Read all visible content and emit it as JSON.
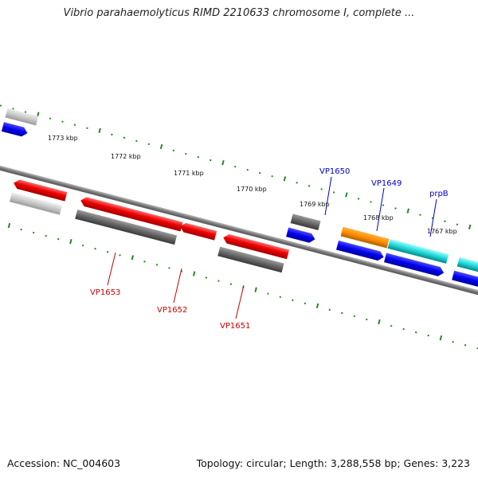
{
  "title": "Vibrio parahaemolyticus RIMD 2210633 chromosome I, complete ...",
  "footer": {
    "accession": "Accession: NC_004603",
    "topology": "Topology: circular; Length: 3,288,558 bp; Genes: 3,223"
  },
  "colors": {
    "forward_gene": "#0000ee",
    "reverse_gene": "#ee0000",
    "rna": "#ff8c00",
    "cyan_feature": "#00cccc",
    "grey_feature": "#777777",
    "tick": "#228b22",
    "label_forward": "#0000cc",
    "label_reverse": "#cc0000"
  },
  "kbp_labels": [
    "1773 kbp",
    "1772 kbp",
    "1771 kbp",
    "1770 kbp",
    "1769 kbp",
    "1768 kbp",
    "1767 kbp"
  ],
  "gene_labels": [
    {
      "text": "VP1650",
      "strand": "forward"
    },
    {
      "text": "VP1649",
      "strand": "forward"
    },
    {
      "text": "prpB",
      "strand": "forward"
    },
    {
      "text": "VP1653",
      "strand": "reverse"
    },
    {
      "text": "VP1652",
      "strand": "reverse"
    },
    {
      "text": "VP1651",
      "strand": "reverse"
    }
  ]
}
